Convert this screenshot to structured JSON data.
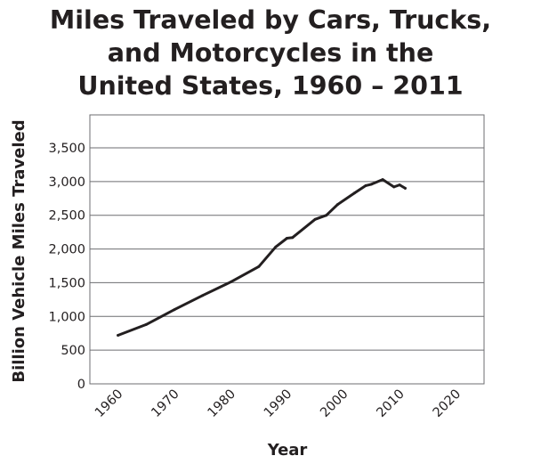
{
  "chart_data": {
    "type": "line",
    "title_lines": [
      "Miles Traveled by Cars, Trucks,",
      "and Motorcycles in the",
      "United States, 1960 – 2011"
    ],
    "xlabel": "Year",
    "ylabel": "Billion Vehicle Miles Traveled",
    "xlim": [
      1955,
      2025
    ],
    "ylim": [
      0,
      3500
    ],
    "xticks": [
      1960,
      1970,
      1980,
      1990,
      2000,
      2010,
      2020
    ],
    "xtick_labels": [
      "1960",
      "1970",
      "1980",
      "1990",
      "2000",
      "2010",
      "2020"
    ],
    "yticks": [
      0,
      500,
      1000,
      1500,
      2000,
      2500,
      3000,
      3500
    ],
    "ytick_labels": [
      "0",
      "500",
      "1,000",
      "1,500",
      "2,000",
      "2,500",
      "3,000",
      "3,500"
    ],
    "grid": "horizontal",
    "series": [
      {
        "x": [
          1960,
          1965,
          1970,
          1975,
          1980,
          1985,
          1988,
          1990,
          1991,
          1995,
          1997,
          1999,
          2002,
          2004,
          2005,
          2007,
          2009,
          2010,
          2011
        ],
        "y": [
          720,
          880,
          1100,
          1310,
          1510,
          1740,
          2030,
          2160,
          2170,
          2440,
          2500,
          2660,
          2830,
          2940,
          2960,
          3030,
          2920,
          2950,
          2900
        ]
      }
    ]
  }
}
